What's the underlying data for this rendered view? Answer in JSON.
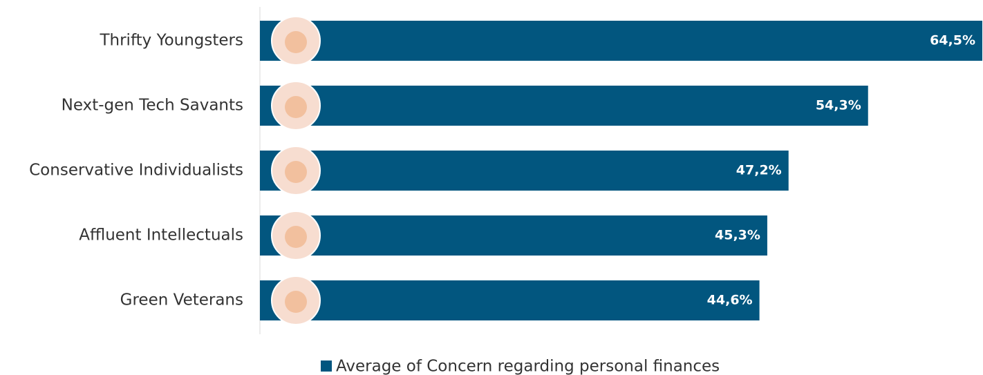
{
  "chart_data": {
    "type": "hbar",
    "categories": [
      "Thrifty Youngsters",
      "Next-gen Tech Savants",
      "Conservative Individualists",
      "Affluent Intellectuals",
      "Green Veterans"
    ],
    "series": [
      {
        "name": "Average of Concern regarding personal finances",
        "color": "#02567f",
        "values": [
          64.5,
          54.3,
          47.2,
          45.3,
          44.6
        ],
        "value_labels": [
          "64,5%",
          "54,3%",
          "47,2%",
          "45,3%",
          "44,6%"
        ]
      }
    ],
    "legend": "bottom"
  }
}
